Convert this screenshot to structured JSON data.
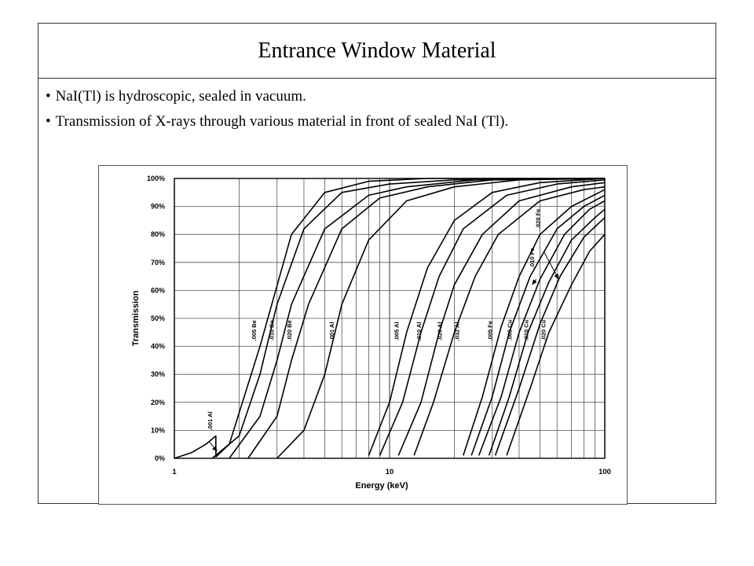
{
  "slide": {
    "title": "Entrance Window Material",
    "bullets": [
      "NaI(Tl) is hydroscopic, sealed in vacuum.",
      "Transmission of X-rays through various material in front of sealed NaI (Tl)."
    ]
  },
  "chart_data": {
    "type": "line",
    "title": "",
    "xlabel": "Energy (keV)",
    "ylabel": "Transmission",
    "xscale": "log",
    "xlim": [
      1,
      100
    ],
    "ylim": [
      0,
      100
    ],
    "grid": true,
    "legend": "none",
    "x_ticks": [
      "1",
      "10",
      "100"
    ],
    "y_ticks": [
      "0%",
      "10%",
      "20%",
      "30%",
      "40%",
      "50%",
      "60%",
      "70%",
      "80%",
      "90%",
      "100%"
    ],
    "series": [
      {
        "name": ".001 Al",
        "x": [
          1.0,
          1.2,
          1.4,
          1.559,
          1.56,
          1.8,
          2.5,
          3.5,
          5,
          8,
          15,
          100
        ],
        "y": [
          0,
          2,
          5,
          8,
          0.5,
          5,
          40,
          80,
          95,
          99,
          100,
          100
        ]
      },
      {
        "name": ".005 Be",
        "x": [
          1.5,
          2,
          2.5,
          3,
          4,
          6,
          10,
          20,
          100
        ],
        "y": [
          0,
          8,
          30,
          55,
          82,
          95,
          98,
          99.5,
          100
        ]
      },
      {
        "name": ".010 Be",
        "x": [
          1.8,
          2.5,
          3,
          3.5,
          5,
          8,
          12,
          25,
          100
        ],
        "y": [
          0,
          15,
          35,
          55,
          82,
          94,
          97,
          99.5,
          100
        ]
      },
      {
        "name": ".020 Be",
        "x": [
          2.2,
          3,
          3.5,
          4.2,
          6,
          9,
          15,
          30,
          100
        ],
        "y": [
          0,
          15,
          35,
          55,
          82,
          93,
          97,
          99.5,
          100
        ]
      },
      {
        "name": ".001 Al",
        "x": [
          3,
          4,
          5,
          6,
          8,
          12,
          20,
          40,
          100
        ],
        "y": [
          0,
          10,
          30,
          55,
          78,
          92,
          97,
          99.5,
          100
        ]
      },
      {
        "name": ".005 Al",
        "x": [
          8,
          10,
          12,
          15,
          20,
          30,
          50,
          100
        ],
        "y": [
          1,
          20,
          45,
          68,
          85,
          95,
          98.5,
          100
        ]
      },
      {
        "name": ".010 Al",
        "x": [
          9,
          11.5,
          14,
          17,
          22,
          35,
          60,
          100
        ],
        "y": [
          1,
          20,
          45,
          65,
          82,
          94,
          98,
          99.5
        ]
      },
      {
        "name": ".020 Al",
        "x": [
          11,
          14,
          17,
          20,
          27,
          40,
          70,
          100
        ],
        "y": [
          1,
          20,
          45,
          62,
          80,
          92,
          97,
          98.5
        ]
      },
      {
        "name": ".032 Al",
        "x": [
          13,
          16,
          20,
          25,
          32,
          50,
          80,
          100
        ],
        "y": [
          1,
          20,
          45,
          65,
          80,
          92,
          96,
          97
        ]
      },
      {
        "name": ".005 Fe",
        "x": [
          22,
          27,
          33,
          40,
          50,
          70,
          100
        ],
        "y": [
          1,
          22,
          47,
          65,
          80,
          90,
          96
        ]
      },
      {
        "name": ".005 Cu",
        "x": [
          24,
          30,
          36,
          45,
          60,
          80,
          100
        ],
        "y": [
          1,
          22,
          45,
          65,
          82,
          90,
          94
        ]
      },
      {
        "name": ".010 Fe",
        "x": [
          26,
          33,
          40,
          50,
          65,
          85,
          100
        ],
        "y": [
          1,
          22,
          45,
          64,
          80,
          89,
          92
        ]
      },
      {
        "name": ".010 Cu",
        "x": [
          29,
          36,
          44,
          55,
          70,
          90,
          100
        ],
        "y": [
          1,
          22,
          45,
          63,
          78,
          86,
          89
        ]
      },
      {
        "name": ".020 Fe",
        "x": [
          31,
          40,
          50,
          62,
          80,
          100
        ],
        "y": [
          1,
          25,
          48,
          65,
          79,
          86
        ]
      },
      {
        "name": ".020 Cu",
        "x": [
          35,
          45,
          55,
          70,
          85,
          100
        ],
        "y": [
          1,
          25,
          45,
          62,
          74,
          80
        ]
      }
    ],
    "labels": [
      {
        "text": ".001 Al",
        "x": 1.5,
        "y": 10
      },
      {
        "text": ".005 Be",
        "x": 2.4,
        "y": 42
      },
      {
        "text": ".010 Be",
        "x": 2.9,
        "y": 42
      },
      {
        "text": ".020 Be",
        "x": 3.5,
        "y": 42
      },
      {
        "text": ".001 Al",
        "x": 5.5,
        "y": 42
      },
      {
        "text": ".005 Al",
        "x": 11,
        "y": 42
      },
      {
        "text": ".010 Al",
        "x": 14,
        "y": 42
      },
      {
        "text": ".020 Al",
        "x": 17.5,
        "y": 42
      },
      {
        "text": ".032 Al",
        "x": 21,
        "y": 42
      },
      {
        "text": ".005 Fe",
        "x": 30,
        "y": 42
      },
      {
        "text": ".005 Cu",
        "x": 37,
        "y": 42
      },
      {
        "text": ".010 Cu",
        "x": 44,
        "y": 42
      },
      {
        "text": ".020 Cu",
        "x": 53,
        "y": 42
      },
      {
        "text": ".010 Fe",
        "x": 47,
        "y": 68
      },
      {
        "text": ".020 Fe",
        "x": 50,
        "y": 82
      }
    ]
  }
}
